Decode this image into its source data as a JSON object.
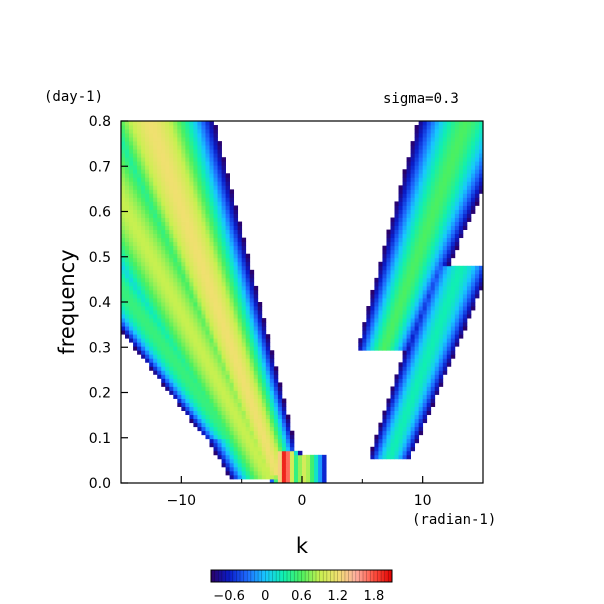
{
  "chart_data": {
    "type": "heatmap",
    "title": "",
    "annotation": "sigma=0.3",
    "xlabel": "k",
    "xunit": "(radian-1)",
    "ylabel": "frequency",
    "yunit": "(day-1)",
    "xlim": [
      -15,
      15
    ],
    "ylim": [
      0,
      0.8
    ],
    "xticks": [
      -10,
      0,
      10
    ],
    "yticks": [
      0.0,
      0.1,
      0.2,
      0.3,
      0.4,
      0.5,
      0.6,
      0.7,
      0.8
    ],
    "xtick_labels": [
      "−10",
      "0",
      "10"
    ],
    "ytick_labels": [
      "0.0",
      "0.1",
      "0.2",
      "0.3",
      "0.4",
      "0.5",
      "0.6",
      "0.7",
      "0.8"
    ],
    "colorbar": {
      "min": -0.9,
      "max": 2.1,
      "tick_values": [
        -0.6,
        0,
        0.6,
        1.2,
        1.8
      ],
      "tick_labels": [
        "−0.6",
        "0",
        "0.6",
        "1.2",
        "1.8"
      ],
      "colors": [
        "#2b0066",
        "#0a1cc8",
        "#1e6cff",
        "#18c8ff",
        "#10f0b0",
        "#4cf060",
        "#c8f050",
        "#f0e070",
        "#ffb0a0",
        "#ff5040",
        "#e00000"
      ]
    },
    "regions": [
      {
        "name": "westward-band-1",
        "value_range": [
          -0.9,
          1.2
        ],
        "k_range": [
          -15,
          -3
        ],
        "freq_range": [
          0.2,
          0.8
        ]
      },
      {
        "name": "westward-band-2",
        "value_range": [
          -0.9,
          0.9
        ],
        "k_range": [
          -15,
          -6
        ],
        "freq_range": [
          0.0,
          0.75
        ]
      },
      {
        "name": "low-frequency-peak",
        "value_range": [
          0.6,
          2.1
        ],
        "k_range": [
          -3,
          0
        ],
        "freq_range": [
          0.0,
          0.08
        ]
      },
      {
        "name": "eastward-band-1",
        "value_range": [
          -0.9,
          0.6
        ],
        "k_range": [
          5,
          15
        ],
        "freq_range": [
          0.29,
          0.8
        ]
      },
      {
        "name": "eastward-band-2",
        "value_range": [
          -0.9,
          0.3
        ],
        "k_range": [
          10,
          15
        ],
        "freq_range": [
          0.05,
          0.47
        ]
      }
    ]
  }
}
